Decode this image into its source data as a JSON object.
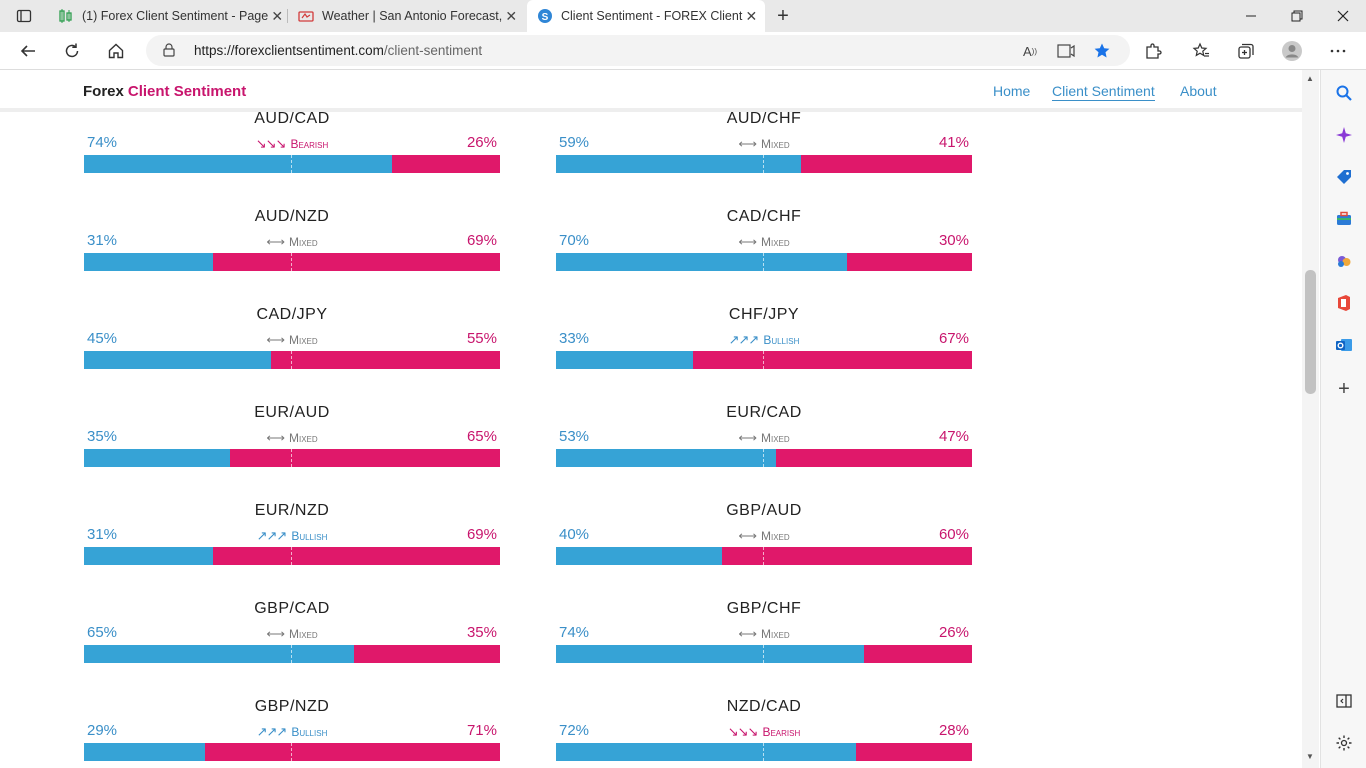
{
  "browser": {
    "tabs": [
      {
        "title": "(1) Forex Client Sentiment - Page",
        "icon": "chart-icon"
      },
      {
        "title": "Weather | San Antonio Forecast,",
        "icon": "weather-icon"
      },
      {
        "title": "Client Sentiment - FOREX Client",
        "icon": "site-icon"
      }
    ],
    "url_host": "https://forexclientsentiment.com",
    "url_path": "/client-sentiment"
  },
  "site": {
    "brand_part1": "Forex",
    "brand_part2": "Client Sentiment",
    "nav": [
      "Home",
      "Client Sentiment",
      "About"
    ]
  },
  "colors": {
    "long": "#36a3d6",
    "short": "#e0186a"
  },
  "pairs": [
    {
      "name": "AUD/CAD",
      "long": 74,
      "short": 26,
      "long_label": "74%",
      "short_label": "26%",
      "sentiment": "Bearish",
      "arrows": "↘↘↘"
    },
    {
      "name": "AUD/CHF",
      "long": 59,
      "short": 41,
      "long_label": "59%",
      "short_label": "41%",
      "sentiment": "Mixed",
      "arrows": "⟷"
    },
    {
      "name": "AUD/NZD",
      "long": 31,
      "short": 69,
      "long_label": "31%",
      "short_label": "69%",
      "sentiment": "Mixed",
      "arrows": "⟷"
    },
    {
      "name": "CAD/CHF",
      "long": 70,
      "short": 30,
      "long_label": "70%",
      "short_label": "30%",
      "sentiment": "Mixed",
      "arrows": "⟷"
    },
    {
      "name": "CAD/JPY",
      "long": 45,
      "short": 55,
      "long_label": "45%",
      "short_label": "55%",
      "sentiment": "Mixed",
      "arrows": "⟷"
    },
    {
      "name": "CHF/JPY",
      "long": 33,
      "short": 67,
      "long_label": "33%",
      "short_label": "67%",
      "sentiment": "Bullish",
      "arrows": "↗↗↗"
    },
    {
      "name": "EUR/AUD",
      "long": 35,
      "short": 65,
      "long_label": "35%",
      "short_label": "65%",
      "sentiment": "Mixed",
      "arrows": "⟷"
    },
    {
      "name": "EUR/CAD",
      "long": 53,
      "short": 47,
      "long_label": "53%",
      "short_label": "47%",
      "sentiment": "Mixed",
      "arrows": "⟷"
    },
    {
      "name": "EUR/NZD",
      "long": 31,
      "short": 69,
      "long_label": "31%",
      "short_label": "69%",
      "sentiment": "Bullish",
      "arrows": "↗↗↗"
    },
    {
      "name": "GBP/AUD",
      "long": 40,
      "short": 60,
      "long_label": "40%",
      "short_label": "60%",
      "sentiment": "Mixed",
      "arrows": "⟷"
    },
    {
      "name": "GBP/CAD",
      "long": 65,
      "short": 35,
      "long_label": "65%",
      "short_label": "35%",
      "sentiment": "Mixed",
      "arrows": "⟷"
    },
    {
      "name": "GBP/CHF",
      "long": 74,
      "short": 26,
      "long_label": "74%",
      "short_label": "26%",
      "sentiment": "Mixed",
      "arrows": "⟷"
    },
    {
      "name": "GBP/NZD",
      "long": 29,
      "short": 71,
      "long_label": "29%",
      "short_label": "71%",
      "sentiment": "Bullish",
      "arrows": "↗↗↗"
    },
    {
      "name": "NZD/CAD",
      "long": 72,
      "short": 28,
      "long_label": "72%",
      "short_label": "28%",
      "sentiment": "Bearish",
      "arrows": "↘↘↘"
    }
  ]
}
